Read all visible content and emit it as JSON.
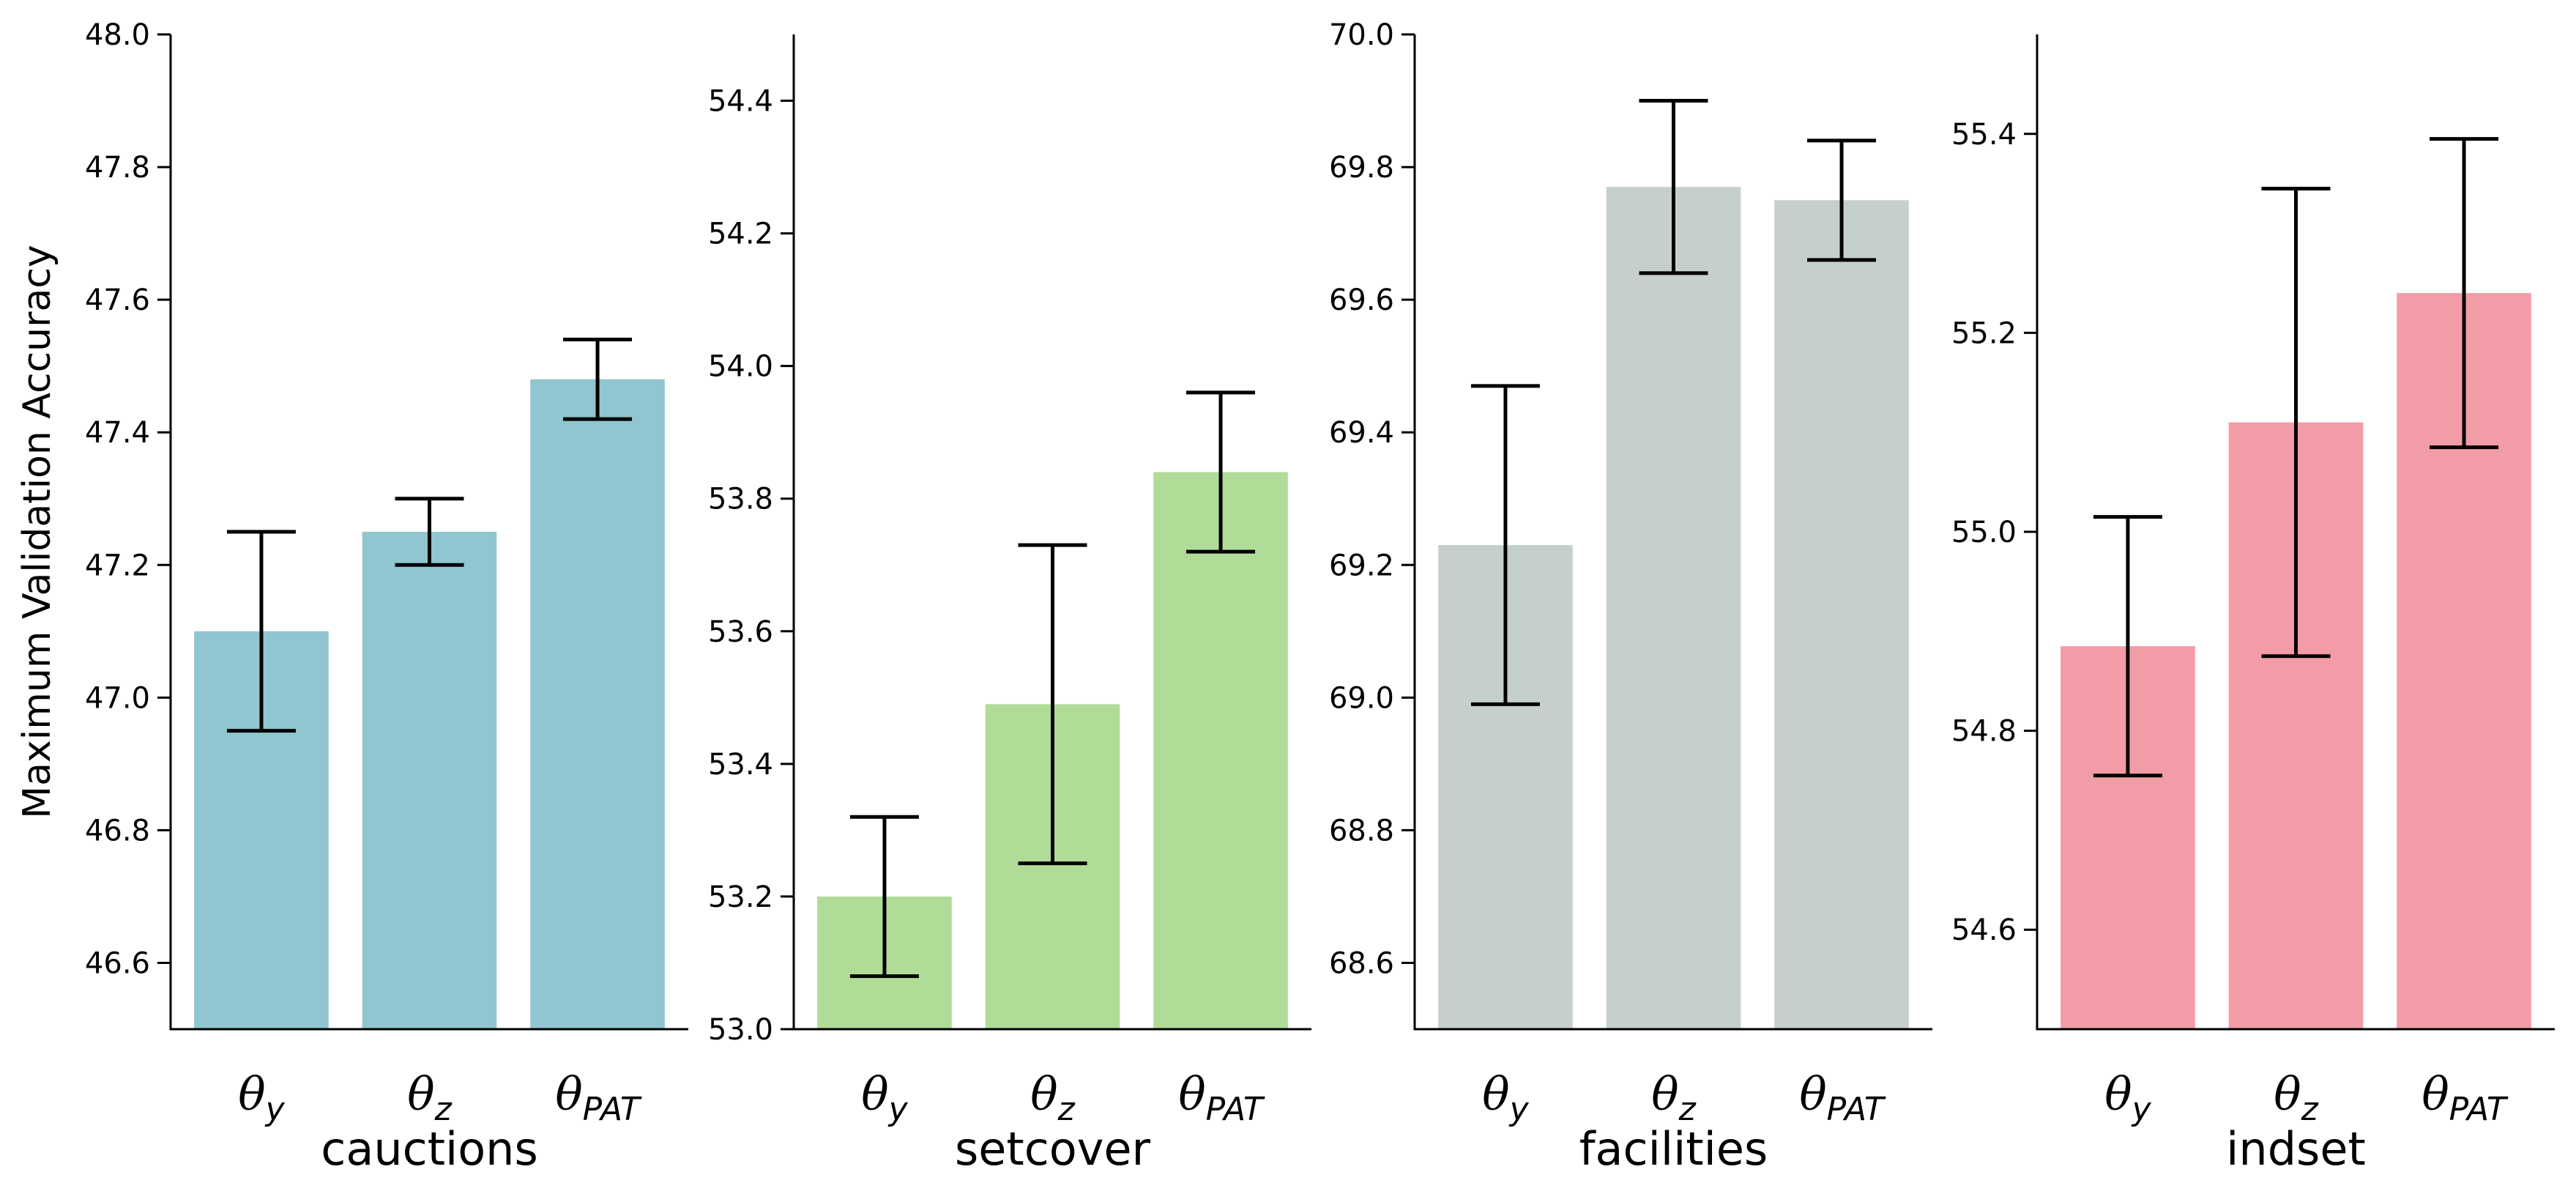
{
  "chart_data": [
    {
      "type": "bar",
      "ylabel": "Maximum Validation Accuracy",
      "xlabel": "cauctions",
      "categories": [
        "θy",
        "θz",
        "θPAT"
      ],
      "values": [
        47.1,
        47.25,
        47.48
      ],
      "errors": [
        0.15,
        0.05,
        0.06
      ],
      "color": "#91c5cf",
      "ylim": [
        46.5,
        48.0
      ],
      "yticks": [
        {
          "value": 46.6,
          "label": "46.6"
        },
        {
          "value": 46.8,
          "label": "46.8"
        },
        {
          "value": 47.0,
          "label": "47.0"
        },
        {
          "value": 47.2,
          "label": "47.2"
        },
        {
          "value": 47.4,
          "label": "47.4"
        },
        {
          "value": 47.6,
          "label": "47.6"
        },
        {
          "value": 47.8,
          "label": "47.8"
        },
        {
          "value": 48.0,
          "label": "48.0"
        }
      ]
    },
    {
      "type": "bar",
      "xlabel": "setcover",
      "categories": [
        "θy",
        "θz",
        "θPAT"
      ],
      "values": [
        53.2,
        53.49,
        53.84
      ],
      "errors": [
        0.12,
        0.24,
        0.12
      ],
      "color": "#b0dc98",
      "ylim": [
        53.0,
        54.5
      ],
      "yticks": [
        {
          "value": 53.0,
          "label": "53.0"
        },
        {
          "value": 53.2,
          "label": "53.2"
        },
        {
          "value": 53.4,
          "label": "53.4"
        },
        {
          "value": 53.6,
          "label": "53.6"
        },
        {
          "value": 53.8,
          "label": "53.8"
        },
        {
          "value": 54.0,
          "label": "54.0"
        },
        {
          "value": 54.2,
          "label": "54.2"
        },
        {
          "value": 54.4,
          "label": "54.4"
        }
      ]
    },
    {
      "type": "bar",
      "xlabel": "facilities",
      "categories": [
        "θy",
        "θz",
        "θPAT"
      ],
      "values": [
        69.23,
        69.77,
        69.75
      ],
      "errors": [
        0.24,
        0.13,
        0.09
      ],
      "color": "#c5cfcd",
      "ylim": [
        68.5,
        70.0
      ],
      "yticks": [
        {
          "value": 68.6,
          "label": "68.6"
        },
        {
          "value": 68.8,
          "label": "68.8"
        },
        {
          "value": 69.0,
          "label": "69.0"
        },
        {
          "value": 69.2,
          "label": "69.2"
        },
        {
          "value": 69.4,
          "label": "69.4"
        },
        {
          "value": 69.6,
          "label": "69.6"
        },
        {
          "value": 69.8,
          "label": "69.8"
        },
        {
          "value": 70.0,
          "label": "70.0"
        }
      ]
    },
    {
      "type": "bar",
      "xlabel": "indset",
      "categories": [
        "θy",
        "θz",
        "θPAT"
      ],
      "values": [
        54.885,
        55.11,
        55.24
      ],
      "errors": [
        0.13,
        0.235,
        0.155
      ],
      "color": "#f29ca7",
      "ylim": [
        54.5,
        55.5
      ],
      "yticks": [
        {
          "value": 54.6,
          "label": "54.6"
        },
        {
          "value": 54.8,
          "label": "54.8"
        },
        {
          "value": 55.0,
          "label": "55.0"
        },
        {
          "value": 55.2,
          "label": "55.2"
        },
        {
          "value": 55.4,
          "label": "55.4"
        }
      ]
    }
  ]
}
